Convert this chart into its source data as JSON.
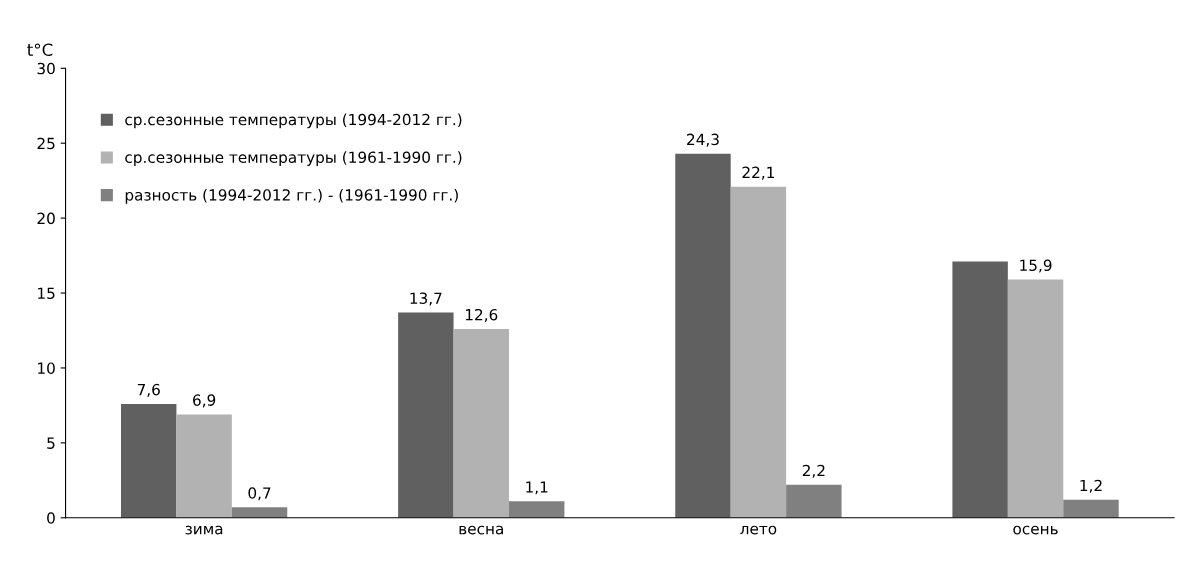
{
  "chart_data": {
    "type": "bar",
    "ylabel": "t°C",
    "categories": [
      "зима",
      "весна",
      "лето",
      "осень"
    ],
    "series": [
      {
        "name": "ср.сезонные температуры (1994-2012 гг.)",
        "color": "#606060",
        "values": [
          7.6,
          13.7,
          24.3,
          17.1
        ],
        "value_labels": [
          "7,6",
          "13,7",
          "24,3",
          null
        ]
      },
      {
        "name": "ср.сезонные температуры (1961-1990 гг.)",
        "color": "#b2b2b2",
        "values": [
          6.9,
          12.6,
          22.1,
          15.9
        ],
        "value_labels": [
          "6,9",
          "12,6",
          "22,1",
          "15,9"
        ]
      },
      {
        "name": "разность (1994-2012 гг.) - (1961-1990 гг.)",
        "color": "#808080",
        "values": [
          0.7,
          1.1,
          2.2,
          1.2
        ],
        "value_labels": [
          "0,7",
          "1,1",
          "2,2",
          "1,2"
        ]
      }
    ],
    "ylim": [
      0,
      30
    ],
    "yticks": [
      0,
      5,
      10,
      15,
      20,
      25,
      30
    ],
    "grid": false,
    "legend": "top left"
  }
}
